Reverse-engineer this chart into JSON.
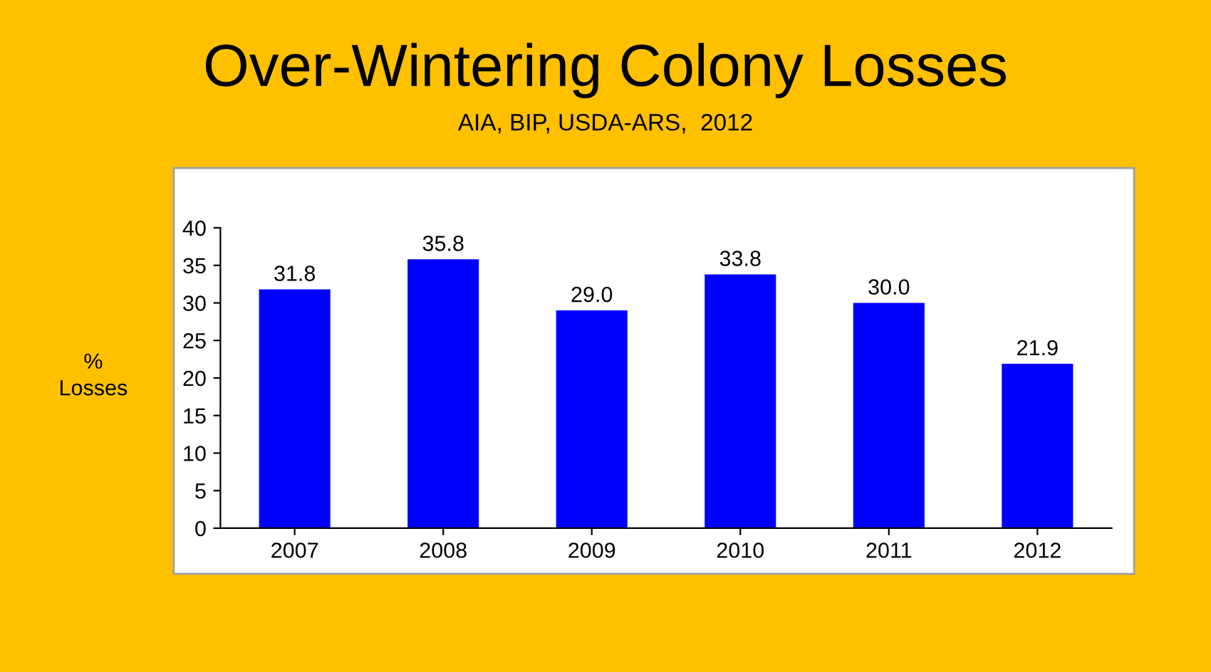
{
  "chart_data": {
    "type": "bar",
    "title": "Over-Wintering Colony Losses",
    "subtitle": "AIA, BIP, USDA-ARS,  2012",
    "ylabel": "%\nLosses",
    "categories": [
      "2007",
      "2008",
      "2009",
      "2010",
      "2011",
      "2012"
    ],
    "values": [
      31.8,
      35.8,
      29.0,
      33.8,
      30.0,
      21.9
    ],
    "value_labels": [
      "31.8",
      "35.8",
      "29.0",
      "33.8",
      "30.0",
      "21.9"
    ],
    "color": "#0000ff",
    "ylim": [
      0,
      40
    ],
    "yticks": [
      0,
      5,
      10,
      15,
      20,
      25,
      30,
      35,
      40
    ],
    "grid": false,
    "legend": false
  }
}
